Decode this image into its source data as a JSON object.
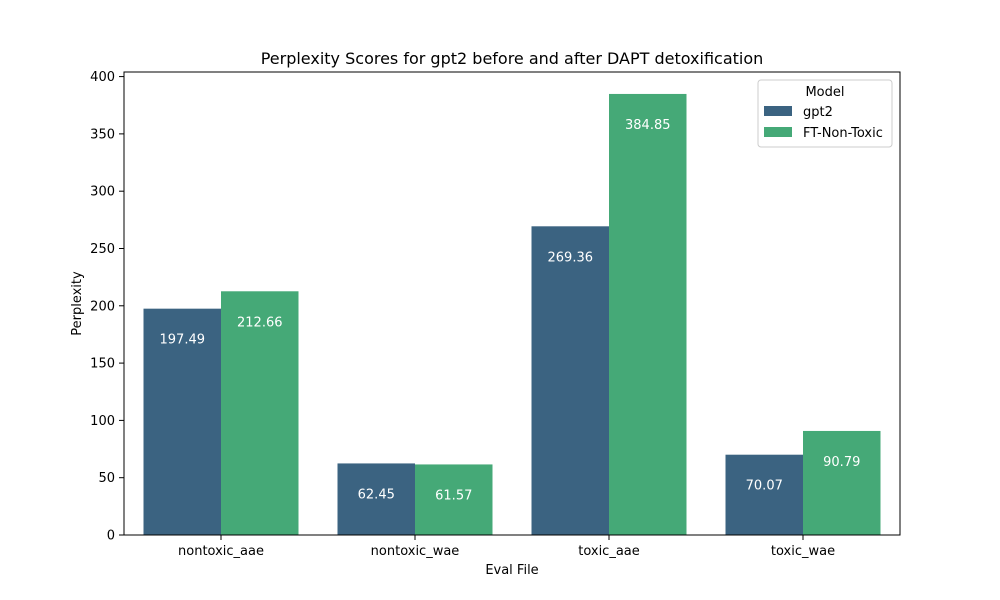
{
  "chart_data": {
    "type": "bar",
    "title": "Perplexity Scores for gpt2 before and after DAPT detoxification",
    "xlabel": "Eval File",
    "ylabel": "Perplexity",
    "categories": [
      "nontoxic_aae",
      "nontoxic_wae",
      "toxic_aae",
      "toxic_wae"
    ],
    "series": [
      {
        "name": "gpt2",
        "color": "#3b6381",
        "values": [
          197.49,
          62.45,
          269.36,
          70.07
        ],
        "labels": [
          "197.49",
          "62.45",
          "269.36",
          "70.07"
        ]
      },
      {
        "name": "FT-Non-Toxic",
        "color": "#45a977",
        "values": [
          212.66,
          61.57,
          384.85,
          90.79
        ],
        "labels": [
          "212.66",
          "61.57",
          "384.85",
          "90.79"
        ]
      }
    ],
    "ylim": [
      0,
      404
    ],
    "yticks": [
      0,
      50,
      100,
      150,
      200,
      250,
      300,
      350,
      400
    ],
    "grid": false,
    "legend": {
      "title": "Model",
      "placement": "top-right"
    }
  }
}
